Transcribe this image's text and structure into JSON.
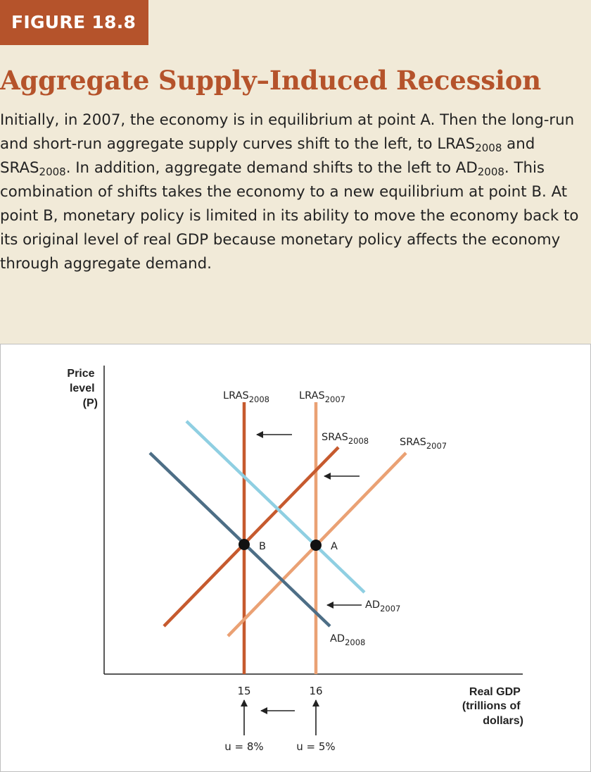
{
  "figure": {
    "badge": "FIGURE 18.8",
    "title": "Aggregate Supply–Induced Recession",
    "caption": {
      "p1": "Initially, in 2007, the economy is in equilibrium at point A. Then the long-run and short-run aggregate supply curves shift to the left, to ",
      "lras_base": "LRAS",
      "lras_sub": "2008",
      "p2": " and ",
      "sras_base": "SRAS",
      "sras_sub": "2008",
      "p3": ". In addition, aggregate demand shifts to the left to ",
      "ad_base": "AD",
      "ad_sub": "2008",
      "p4": ". This combination of shifts takes the economy to a new equilibrium at point B. At point B, monetary policy is limited in its ability to move the economy back to its original level of real GDP because monetary policy affects the economy through aggregate demand."
    }
  },
  "diagram": {
    "y_axis_label": [
      "Price",
      "level",
      "(P)"
    ],
    "x_axis_label": [
      "Real GDP",
      "(trillions of",
      "dollars)"
    ],
    "colors": {
      "lras2008": "#c65a2e",
      "lras2007": "#eaa174",
      "sras2008": "#c65a2e",
      "sras2007": "#eaa174",
      "ad2007": "#8fcfe2",
      "ad2008": "#4d6e86",
      "axis": "#222222",
      "point": "#111111"
    },
    "curves": {
      "lras2008": {
        "base": "LRAS",
        "sub": "2008"
      },
      "lras2007": {
        "base": "LRAS",
        "sub": "2007"
      },
      "sras2008": {
        "base": "SRAS",
        "sub": "2008"
      },
      "sras2007": {
        "base": "SRAS",
        "sub": "2007"
      },
      "ad2007": {
        "base": "AD",
        "sub": "2007"
      },
      "ad2008": {
        "base": "AD",
        "sub": "2008"
      }
    },
    "points": {
      "a": "A",
      "b": "B"
    },
    "ticks": {
      "x_left": "15",
      "x_right": "16"
    },
    "unemployment": {
      "left": "u = 8%",
      "right": "u = 5%"
    }
  }
}
